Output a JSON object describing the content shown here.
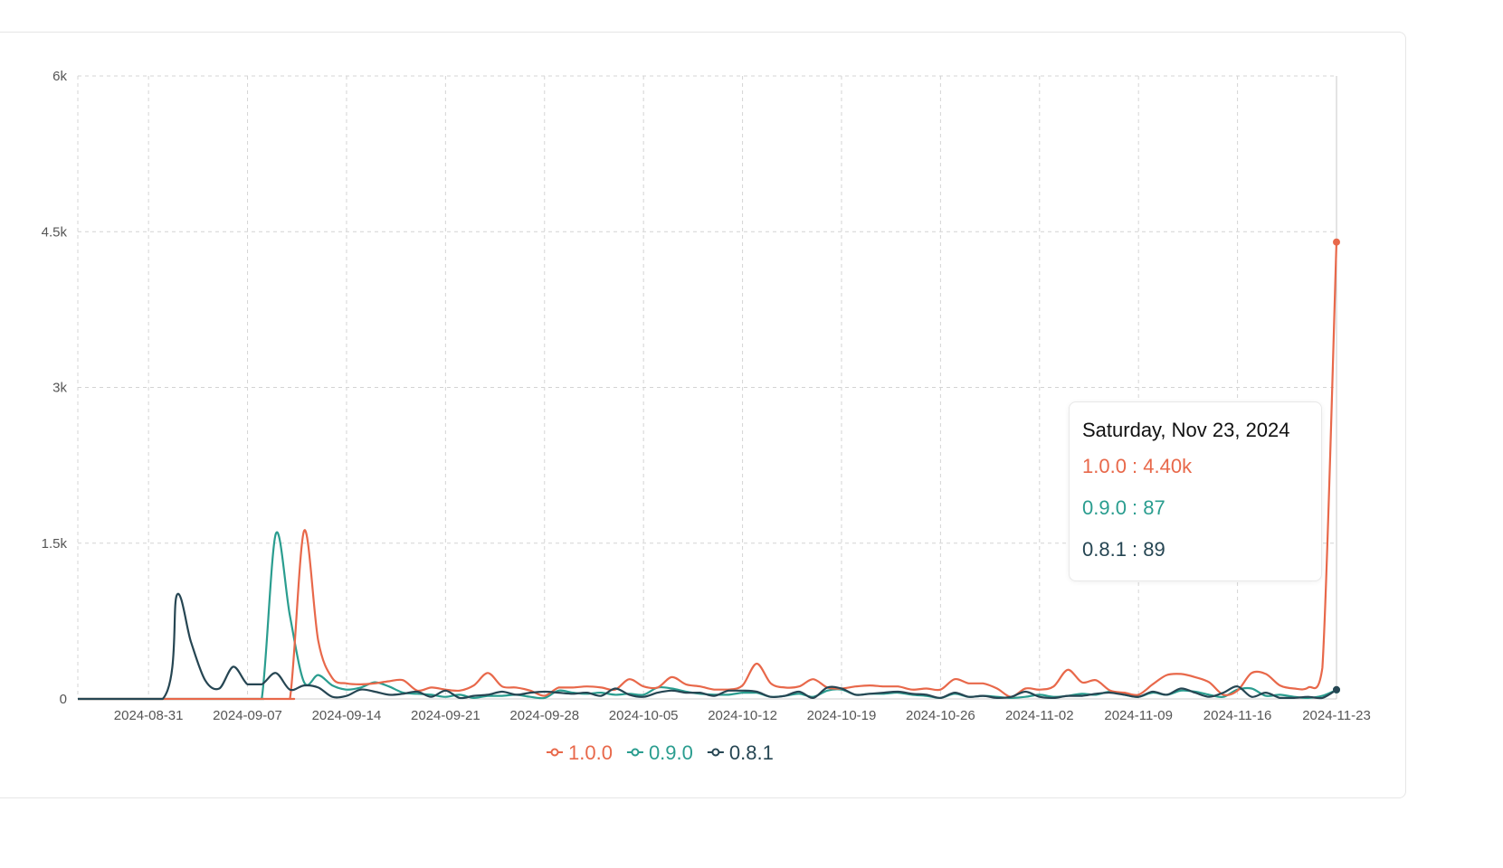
{
  "colors": {
    "v100": "#e8684a",
    "v090": "#2a9d8f",
    "v081": "#264653"
  },
  "chart_data": {
    "type": "line",
    "title": "",
    "xlabel": "",
    "ylabel": "",
    "x_start": "2024-08-26",
    "x_end": "2024-11-23",
    "ylim": [
      0,
      6000
    ],
    "yticks": [
      0,
      1500,
      3000,
      4500,
      6000
    ],
    "ytick_labels": [
      "0",
      "1.5k",
      "3k",
      "4.5k",
      "6k"
    ],
    "xtick_labels": [
      "2024-08-31",
      "2024-09-07",
      "2024-09-14",
      "2024-09-21",
      "2024-09-28",
      "2024-10-05",
      "2024-10-12",
      "2024-10-19",
      "2024-10-26",
      "2024-11-02",
      "2024-11-09",
      "2024-11-16",
      "2024-11-23"
    ],
    "grid": true,
    "legend_position": "bottom-center",
    "series": [
      {
        "name": "1.0.0",
        "color": "#e8684a",
        "points": [
          [
            "2024-08-26",
            0
          ],
          [
            "2024-09-09",
            0
          ],
          [
            "2024-09-10",
            0
          ],
          [
            "2024-09-11",
            1620
          ],
          [
            "2024-09-12",
            560
          ],
          [
            "2024-09-13",
            200
          ],
          [
            "2024-09-14",
            150
          ],
          [
            "2024-09-15",
            140
          ],
          [
            "2024-09-16",
            150
          ],
          [
            "2024-09-17",
            170
          ],
          [
            "2024-09-18",
            180
          ],
          [
            "2024-09-19",
            80
          ],
          [
            "2024-09-20",
            110
          ],
          [
            "2024-09-21",
            90
          ],
          [
            "2024-09-22",
            80
          ],
          [
            "2024-09-23",
            130
          ],
          [
            "2024-09-24",
            250
          ],
          [
            "2024-09-25",
            120
          ],
          [
            "2024-09-26",
            110
          ],
          [
            "2024-09-27",
            80
          ],
          [
            "2024-09-28",
            30
          ],
          [
            "2024-09-29",
            110
          ],
          [
            "2024-09-30",
            110
          ],
          [
            "2024-10-01",
            120
          ],
          [
            "2024-10-02",
            110
          ],
          [
            "2024-10-03",
            90
          ],
          [
            "2024-10-04",
            190
          ],
          [
            "2024-10-05",
            120
          ],
          [
            "2024-10-06",
            110
          ],
          [
            "2024-10-07",
            210
          ],
          [
            "2024-10-08",
            140
          ],
          [
            "2024-10-09",
            120
          ],
          [
            "2024-10-10",
            90
          ],
          [
            "2024-10-11",
            90
          ],
          [
            "2024-10-12",
            130
          ],
          [
            "2024-10-13",
            340
          ],
          [
            "2024-10-14",
            150
          ],
          [
            "2024-10-15",
            110
          ],
          [
            "2024-10-16",
            120
          ],
          [
            "2024-10-17",
            190
          ],
          [
            "2024-10-18",
            110
          ],
          [
            "2024-10-19",
            100
          ],
          [
            "2024-10-20",
            120
          ],
          [
            "2024-10-21",
            130
          ],
          [
            "2024-10-22",
            120
          ],
          [
            "2024-10-23",
            120
          ],
          [
            "2024-10-24",
            90
          ],
          [
            "2024-10-25",
            100
          ],
          [
            "2024-10-26",
            90
          ],
          [
            "2024-10-27",
            190
          ],
          [
            "2024-10-28",
            150
          ],
          [
            "2024-10-29",
            150
          ],
          [
            "2024-10-30",
            100
          ],
          [
            "2024-10-31",
            20
          ],
          [
            "2024-11-01",
            100
          ],
          [
            "2024-11-02",
            90
          ],
          [
            "2024-11-03",
            120
          ],
          [
            "2024-11-04",
            280
          ],
          [
            "2024-11-05",
            160
          ],
          [
            "2024-11-06",
            180
          ],
          [
            "2024-11-07",
            80
          ],
          [
            "2024-11-08",
            60
          ],
          [
            "2024-11-09",
            40
          ],
          [
            "2024-11-10",
            140
          ],
          [
            "2024-11-11",
            230
          ],
          [
            "2024-11-12",
            240
          ],
          [
            "2024-11-13",
            210
          ],
          [
            "2024-11-14",
            160
          ],
          [
            "2024-11-15",
            40
          ],
          [
            "2024-11-16",
            80
          ],
          [
            "2024-11-17",
            250
          ],
          [
            "2024-11-18",
            240
          ],
          [
            "2024-11-19",
            130
          ],
          [
            "2024-11-20",
            100
          ],
          [
            "2024-11-21",
            110
          ],
          [
            "2024-11-22",
            300
          ],
          [
            "2024-11-23",
            4400
          ]
        ]
      },
      {
        "name": "0.9.0",
        "color": "#2a9d8f",
        "points": [
          [
            "2024-08-26",
            0
          ],
          [
            "2024-09-07",
            0
          ],
          [
            "2024-09-08",
            0
          ],
          [
            "2024-09-09",
            1590
          ],
          [
            "2024-09-10",
            800
          ],
          [
            "2024-09-11",
            160
          ],
          [
            "2024-09-12",
            230
          ],
          [
            "2024-09-13",
            130
          ],
          [
            "2024-09-14",
            90
          ],
          [
            "2024-09-15",
            110
          ],
          [
            "2024-09-16",
            160
          ],
          [
            "2024-09-17",
            120
          ],
          [
            "2024-09-18",
            60
          ],
          [
            "2024-09-19",
            50
          ],
          [
            "2024-09-20",
            40
          ],
          [
            "2024-09-21",
            20
          ],
          [
            "2024-09-22",
            40
          ],
          [
            "2024-09-23",
            10
          ],
          [
            "2024-09-24",
            30
          ],
          [
            "2024-09-25",
            30
          ],
          [
            "2024-09-26",
            40
          ],
          [
            "2024-09-27",
            20
          ],
          [
            "2024-09-28",
            10
          ],
          [
            "2024-09-29",
            80
          ],
          [
            "2024-09-30",
            60
          ],
          [
            "2024-10-01",
            50
          ],
          [
            "2024-10-02",
            60
          ],
          [
            "2024-10-03",
            40
          ],
          [
            "2024-10-04",
            50
          ],
          [
            "2024-10-05",
            40
          ],
          [
            "2024-10-06",
            110
          ],
          [
            "2024-10-07",
            100
          ],
          [
            "2024-10-08",
            70
          ],
          [
            "2024-10-09",
            50
          ],
          [
            "2024-10-10",
            40
          ],
          [
            "2024-10-11",
            40
          ],
          [
            "2024-10-12",
            60
          ],
          [
            "2024-10-13",
            60
          ],
          [
            "2024-10-14",
            20
          ],
          [
            "2024-10-15",
            30
          ],
          [
            "2024-10-16",
            50
          ],
          [
            "2024-10-17",
            20
          ],
          [
            "2024-10-18",
            80
          ],
          [
            "2024-10-19",
            90
          ],
          [
            "2024-10-20",
            40
          ],
          [
            "2024-10-21",
            50
          ],
          [
            "2024-10-22",
            50
          ],
          [
            "2024-10-23",
            60
          ],
          [
            "2024-10-24",
            40
          ],
          [
            "2024-10-25",
            30
          ],
          [
            "2024-10-26",
            10
          ],
          [
            "2024-10-27",
            50
          ],
          [
            "2024-10-28",
            20
          ],
          [
            "2024-10-29",
            30
          ],
          [
            "2024-10-30",
            20
          ],
          [
            "2024-10-31",
            10
          ],
          [
            "2024-11-01",
            20
          ],
          [
            "2024-11-02",
            40
          ],
          [
            "2024-11-03",
            20
          ],
          [
            "2024-11-04",
            30
          ],
          [
            "2024-11-05",
            50
          ],
          [
            "2024-11-06",
            40
          ],
          [
            "2024-11-07",
            70
          ],
          [
            "2024-11-08",
            40
          ],
          [
            "2024-11-09",
            20
          ],
          [
            "2024-11-10",
            60
          ],
          [
            "2024-11-11",
            40
          ],
          [
            "2024-11-12",
            80
          ],
          [
            "2024-11-13",
            70
          ],
          [
            "2024-11-14",
            40
          ],
          [
            "2024-11-15",
            20
          ],
          [
            "2024-11-16",
            90
          ],
          [
            "2024-11-17",
            100
          ],
          [
            "2024-11-18",
            30
          ],
          [
            "2024-11-19",
            40
          ],
          [
            "2024-11-20",
            20
          ],
          [
            "2024-11-21",
            10
          ],
          [
            "2024-11-22",
            30
          ],
          [
            "2024-11-23",
            87
          ]
        ]
      },
      {
        "name": "0.8.1",
        "color": "#264653",
        "points": [
          [
            "2024-08-26",
            0
          ],
          [
            "2024-09-01",
            0
          ],
          [
            "2024-09-02",
            1000
          ],
          [
            "2024-09-03",
            550
          ],
          [
            "2024-09-04",
            180
          ],
          [
            "2024-09-05",
            100
          ],
          [
            "2024-09-06",
            310
          ],
          [
            "2024-09-07",
            140
          ],
          [
            "2024-09-08",
            140
          ],
          [
            "2024-09-09",
            250
          ],
          [
            "2024-09-10",
            90
          ],
          [
            "2024-09-11",
            130
          ],
          [
            "2024-09-12",
            110
          ],
          [
            "2024-09-13",
            20
          ],
          [
            "2024-09-14",
            30
          ],
          [
            "2024-09-15",
            90
          ],
          [
            "2024-09-16",
            70
          ],
          [
            "2024-09-17",
            40
          ],
          [
            "2024-09-18",
            50
          ],
          [
            "2024-09-19",
            70
          ],
          [
            "2024-09-20",
            20
          ],
          [
            "2024-09-21",
            80
          ],
          [
            "2024-09-22",
            10
          ],
          [
            "2024-09-23",
            30
          ],
          [
            "2024-09-24",
            40
          ],
          [
            "2024-09-25",
            70
          ],
          [
            "2024-09-26",
            40
          ],
          [
            "2024-09-27",
            60
          ],
          [
            "2024-09-28",
            70
          ],
          [
            "2024-09-29",
            60
          ],
          [
            "2024-09-30",
            50
          ],
          [
            "2024-10-01",
            60
          ],
          [
            "2024-10-02",
            30
          ],
          [
            "2024-10-03",
            100
          ],
          [
            "2024-10-04",
            40
          ],
          [
            "2024-10-05",
            20
          ],
          [
            "2024-10-06",
            60
          ],
          [
            "2024-10-07",
            80
          ],
          [
            "2024-10-08",
            60
          ],
          [
            "2024-10-09",
            60
          ],
          [
            "2024-10-10",
            30
          ],
          [
            "2024-10-11",
            80
          ],
          [
            "2024-10-12",
            80
          ],
          [
            "2024-10-13",
            70
          ],
          [
            "2024-10-14",
            20
          ],
          [
            "2024-10-15",
            30
          ],
          [
            "2024-10-16",
            70
          ],
          [
            "2024-10-17",
            10
          ],
          [
            "2024-10-18",
            110
          ],
          [
            "2024-10-19",
            100
          ],
          [
            "2024-10-20",
            40
          ],
          [
            "2024-10-21",
            50
          ],
          [
            "2024-10-22",
            60
          ],
          [
            "2024-10-23",
            70
          ],
          [
            "2024-10-24",
            50
          ],
          [
            "2024-10-25",
            40
          ],
          [
            "2024-10-26",
            10
          ],
          [
            "2024-10-27",
            60
          ],
          [
            "2024-10-28",
            20
          ],
          [
            "2024-10-29",
            30
          ],
          [
            "2024-10-30",
            10
          ],
          [
            "2024-10-31",
            20
          ],
          [
            "2024-11-01",
            70
          ],
          [
            "2024-11-02",
            20
          ],
          [
            "2024-11-03",
            10
          ],
          [
            "2024-11-04",
            30
          ],
          [
            "2024-11-05",
            30
          ],
          [
            "2024-11-06",
            50
          ],
          [
            "2024-11-07",
            60
          ],
          [
            "2024-11-08",
            40
          ],
          [
            "2024-11-09",
            20
          ],
          [
            "2024-11-10",
            70
          ],
          [
            "2024-11-11",
            40
          ],
          [
            "2024-11-12",
            100
          ],
          [
            "2024-11-13",
            60
          ],
          [
            "2024-11-14",
            20
          ],
          [
            "2024-11-15",
            60
          ],
          [
            "2024-11-16",
            120
          ],
          [
            "2024-11-17",
            20
          ],
          [
            "2024-11-18",
            60
          ],
          [
            "2024-11-19",
            10
          ],
          [
            "2024-11-20",
            10
          ],
          [
            "2024-11-21",
            20
          ],
          [
            "2024-11-22",
            10
          ],
          [
            "2024-11-23",
            89
          ]
        ]
      }
    ]
  },
  "tooltip": {
    "title": "Saturday, Nov 23, 2024",
    "rows": [
      {
        "label": "1.0.0",
        "sep": " : ",
        "value": "4.40k"
      },
      {
        "label": "0.9.0",
        "sep": " : ",
        "value": "87"
      },
      {
        "label": "0.8.1",
        "sep": " : ",
        "value": "89"
      }
    ]
  },
  "legend": [
    "1.0.0",
    "0.9.0",
    "0.8.1"
  ]
}
